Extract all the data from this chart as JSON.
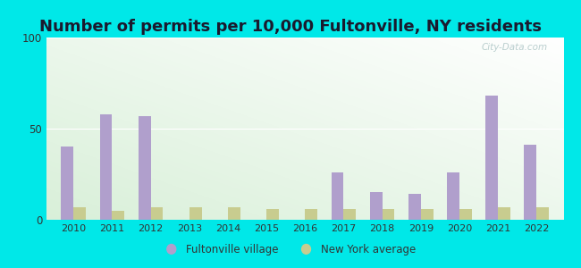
{
  "title": "Number of permits per 10,000 Fultonville, NY residents",
  "years": [
    2010,
    2011,
    2012,
    2013,
    2014,
    2015,
    2016,
    2017,
    2018,
    2019,
    2020,
    2021,
    2022
  ],
  "fultonville": [
    40,
    58,
    57,
    0,
    0,
    0,
    0,
    26,
    15,
    14,
    26,
    68,
    41
  ],
  "ny_average": [
    7,
    5,
    7,
    7,
    7,
    6,
    6,
    6,
    6,
    6,
    6,
    7,
    7
  ],
  "fultonville_color": "#b09fcc",
  "ny_avg_color": "#c8cc8f",
  "background_outer": "#00e8e8",
  "ylim": [
    0,
    100
  ],
  "yticks": [
    0,
    50,
    100
  ],
  "title_fontsize": 13,
  "legend_label_fultonville": "Fultonville village",
  "legend_label_ny": "New York average",
  "watermark": "City-Data.com"
}
